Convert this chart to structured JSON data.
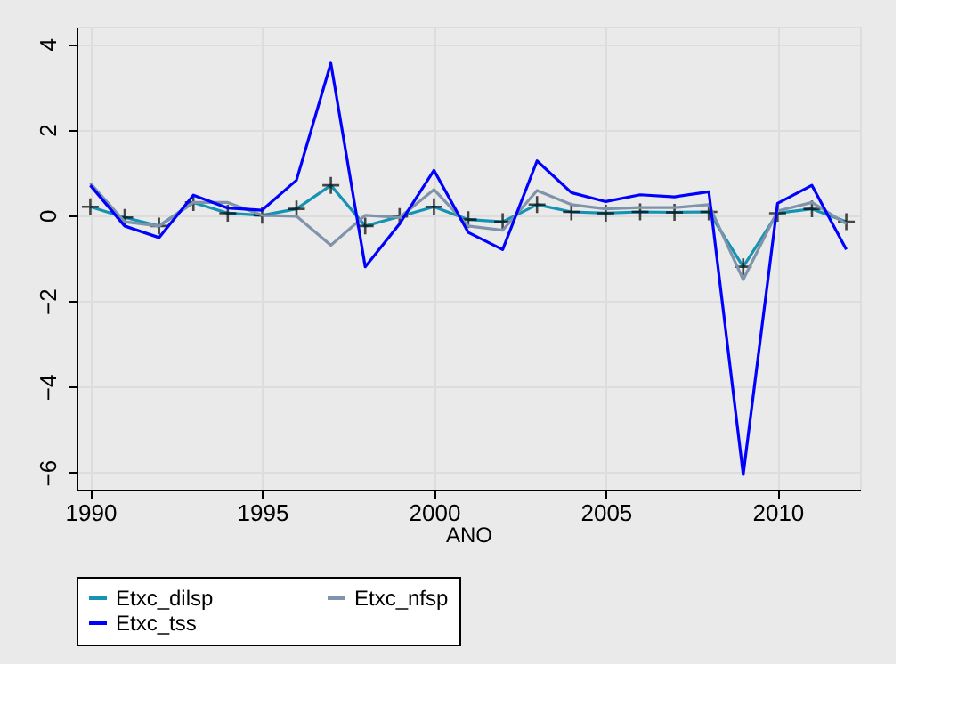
{
  "chart_data": {
    "type": "line",
    "xlabel": "ANO",
    "x": [
      1990,
      1991,
      1992,
      1993,
      1994,
      1995,
      1996,
      1997,
      1998,
      1999,
      2000,
      2001,
      2002,
      2003,
      2004,
      2005,
      2006,
      2007,
      2008,
      2009,
      2010,
      2011,
      2012
    ],
    "series": [
      {
        "name": "Etxc_dilsp",
        "color": "#1593b3",
        "marker": "cross",
        "values": [
          0.2,
          -0.05,
          -0.25,
          0.3,
          0.05,
          0.0,
          0.15,
          0.7,
          -0.25,
          -0.03,
          0.2,
          -0.1,
          -0.15,
          0.25,
          0.08,
          0.05,
          0.08,
          0.07,
          0.08,
          -1.2,
          0.05,
          0.15,
          -0.15
        ]
      },
      {
        "name": "Etxc_nfsp",
        "color": "#7f94aa",
        "marker": "none",
        "values": [
          0.75,
          -0.15,
          -0.25,
          0.3,
          0.3,
          0.0,
          -0.02,
          -0.7,
          0.0,
          -0.05,
          0.6,
          -0.25,
          -0.35,
          0.58,
          0.25,
          0.15,
          0.18,
          0.18,
          0.25,
          -1.5,
          0.1,
          0.3,
          -0.2
        ]
      },
      {
        "name": "Etxc_tss",
        "color": "#0000ff",
        "marker": "none",
        "values": [
          0.7,
          -0.25,
          -0.52,
          0.47,
          0.17,
          0.12,
          0.82,
          3.55,
          -1.2,
          -0.2,
          1.05,
          -0.4,
          -0.8,
          1.27,
          0.53,
          0.32,
          0.48,
          0.43,
          0.55,
          -6.05,
          0.28,
          0.7,
          -0.8
        ]
      }
    ],
    "xlim": [
      1989.6,
      2012.4
    ],
    "xticks": [
      1990,
      1995,
      2000,
      2005,
      2010
    ],
    "ylim": [
      -6.4,
      4.4
    ],
    "yticks": [
      -6,
      -4,
      -2,
      0,
      2,
      4
    ],
    "grid": true,
    "legend": "bottom"
  }
}
